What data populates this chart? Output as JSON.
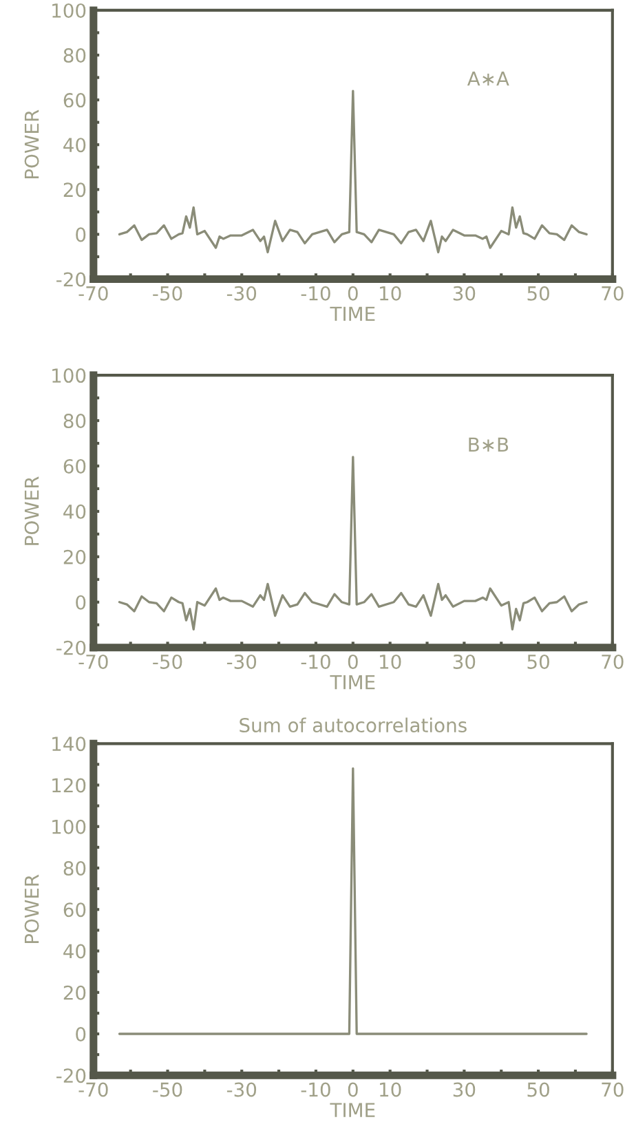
{
  "chart_data": [
    {
      "type": "line",
      "xlabel": "TIME",
      "ylabel": "POWER",
      "annotations": [
        "A∗A"
      ],
      "series": [
        {
          "color": "#8a8c78",
          "x": [
            -63,
            -61,
            -59,
            -57,
            -55,
            -53,
            -51,
            -49,
            -47,
            -46,
            -45,
            -44,
            -43,
            -42,
            -40,
            -37,
            -36,
            -35,
            -33,
            -30,
            -27,
            -25,
            -24,
            -23,
            -21,
            -19,
            -17,
            -15,
            -13,
            -11,
            -7,
            -5,
            -3,
            -1,
            0,
            1,
            3,
            5,
            7,
            11,
            13,
            15,
            17,
            19,
            21,
            23,
            24,
            25,
            27,
            30,
            33,
            35,
            36,
            37,
            40,
            42,
            43,
            44,
            45,
            46,
            47,
            49,
            51,
            53,
            55,
            57,
            59,
            61,
            63
          ],
          "values": [
            0,
            1,
            4,
            -2.5,
            0,
            0.5,
            4,
            -2,
            0,
            0.5,
            8,
            3,
            12,
            0,
            1.5,
            -6,
            -1,
            -2,
            -0.5,
            -0.5,
            2,
            -3,
            -1,
            -8,
            6,
            -3,
            2,
            1,
            -4,
            0,
            2,
            -3.5,
            0,
            1,
            64,
            1,
            0,
            -3.5,
            2,
            0,
            -4,
            1,
            2,
            -3,
            6,
            -8,
            -1,
            -3,
            2,
            -0.5,
            -0.5,
            -2,
            -1,
            -6,
            1.5,
            0,
            12,
            3,
            8,
            0.5,
            0,
            -2,
            4,
            0.5,
            0,
            -2.5,
            4,
            1,
            0
          ]
        }
      ],
      "xlim": [
        -70,
        70
      ],
      "ylim": [
        -20,
        100
      ],
      "xticks": [
        -70,
        {
          "value": -60,
          "label": null
        },
        -50,
        {
          "value": -40,
          "label": null
        },
        -30,
        {
          "value": -20,
          "label": null
        },
        -10,
        0,
        10,
        {
          "value": 20,
          "label": null
        },
        30,
        {
          "value": 40,
          "label": null
        },
        50,
        {
          "value": 60,
          "label": null
        },
        70
      ],
      "yticks": [
        -20,
        {
          "value": -10,
          "label": null
        },
        0,
        {
          "value": 10,
          "label": null
        },
        20,
        {
          "value": 30,
          "label": null
        },
        40,
        {
          "value": 50,
          "label": null
        },
        60,
        {
          "value": 70,
          "label": null
        },
        80,
        {
          "value": 90,
          "label": null
        },
        100
      ],
      "grid": false,
      "legend": false
    },
    {
      "type": "line",
      "xlabel": "TIME",
      "ylabel": "POWER",
      "annotations": [
        "B∗B"
      ],
      "series": [
        {
          "color": "#8a8c78",
          "x": [
            -63,
            -61,
            -59,
            -57,
            -55,
            -53,
            -51,
            -49,
            -47,
            -46,
            -45,
            -44,
            -43,
            -42,
            -40,
            -37,
            -36,
            -35,
            -33,
            -30,
            -27,
            -25,
            -24,
            -23,
            -21,
            -19,
            -17,
            -15,
            -13,
            -11,
            -7,
            -5,
            -3,
            -1,
            0,
            1,
            3,
            5,
            7,
            11,
            13,
            15,
            17,
            19,
            21,
            23,
            24,
            25,
            27,
            30,
            33,
            35,
            36,
            37,
            40,
            42,
            43,
            44,
            45,
            46,
            47,
            49,
            51,
            53,
            55,
            57,
            59,
            61,
            63
          ],
          "values": [
            0,
            -1,
            -4,
            2.5,
            0,
            -0.5,
            -4,
            2,
            0,
            -0.5,
            -8,
            -3,
            -12,
            0,
            -1.5,
            6,
            1,
            2,
            0.5,
            0.5,
            -2,
            3,
            1,
            8,
            -6,
            3,
            -2,
            -1,
            4,
            0,
            -2,
            3.5,
            0,
            -1,
            64,
            -1,
            0,
            3.5,
            -2,
            0,
            4,
            -1,
            -2,
            3,
            -6,
            8,
            1,
            3,
            -2,
            0.5,
            0.5,
            2,
            1,
            6,
            -1.5,
            0,
            -12,
            -3,
            -8,
            -0.5,
            0,
            2,
            -4,
            -0.5,
            0,
            2.5,
            -4,
            -1,
            0
          ]
        }
      ],
      "xlim": [
        -70,
        70
      ],
      "ylim": [
        -20,
        100
      ],
      "xticks": [
        -70,
        {
          "value": -60,
          "label": null
        },
        -50,
        {
          "value": -40,
          "label": null
        },
        -30,
        {
          "value": -20,
          "label": null
        },
        -10,
        0,
        10,
        {
          "value": 20,
          "label": null
        },
        30,
        {
          "value": 40,
          "label": null
        },
        50,
        {
          "value": 60,
          "label": null
        },
        70
      ],
      "yticks": [
        -20,
        {
          "value": -10,
          "label": null
        },
        0,
        {
          "value": 10,
          "label": null
        },
        20,
        {
          "value": 30,
          "label": null
        },
        40,
        {
          "value": 50,
          "label": null
        },
        60,
        {
          "value": 70,
          "label": null
        },
        80,
        {
          "value": 90,
          "label": null
        },
        100
      ],
      "grid": false,
      "legend": false
    },
    {
      "type": "line",
      "title": "Sum of autocorrelations",
      "xlabel": "TIME",
      "ylabel": "POWER",
      "series": [
        {
          "color": "#8a8c78",
          "x": [
            -63,
            -1,
            0,
            1,
            63
          ],
          "values": [
            0,
            0,
            128,
            0,
            0
          ]
        }
      ],
      "xlim": [
        -70,
        70
      ],
      "ylim": [
        -20,
        140
      ],
      "xticks": [
        -70,
        {
          "value": -60,
          "label": null
        },
        -50,
        {
          "value": -40,
          "label": null
        },
        -30,
        {
          "value": -20,
          "label": null
        },
        -10,
        0,
        10,
        {
          "value": 20,
          "label": null
        },
        30,
        {
          "value": 40,
          "label": null
        },
        50,
        {
          "value": 60,
          "label": null
        },
        70
      ],
      "yticks": [
        -20,
        {
          "value": -10,
          "label": null
        },
        0,
        {
          "value": 10,
          "label": null
        },
        20,
        {
          "value": 30,
          "label": null
        },
        40,
        {
          "value": 50,
          "label": null
        },
        60,
        {
          "value": 70,
          "label": null
        },
        80,
        {
          "value": 90,
          "label": null
        },
        100,
        {
          "value": 110,
          "label": null
        },
        120,
        {
          "value": 130,
          "label": null
        },
        140
      ],
      "grid": false,
      "legend": false
    }
  ]
}
